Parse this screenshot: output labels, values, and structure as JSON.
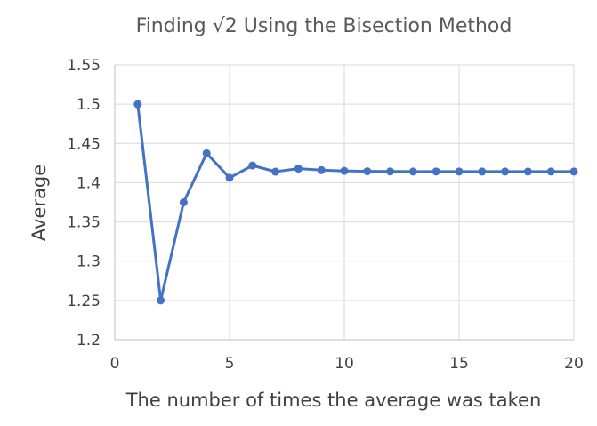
{
  "chart_data": {
    "type": "line",
    "title": "Finding √2 Using the Bisection Method",
    "xlabel": "The number of times the average was taken",
    "ylabel": "Average",
    "xlim": [
      0,
      20
    ],
    "ylim": [
      1.2,
      1.55
    ],
    "x_ticks": [
      "0",
      "5",
      "10",
      "15",
      "20"
    ],
    "y_ticks": [
      "1.2",
      "1.25",
      "1.3",
      "1.35",
      "1.4",
      "1.45",
      "1.5",
      "1.55"
    ],
    "x_tick_values": [
      0,
      5,
      10,
      15,
      20
    ],
    "y_tick_values": [
      1.2,
      1.25,
      1.3,
      1.35,
      1.4,
      1.45,
      1.5,
      1.55
    ],
    "grid": true,
    "series": [
      {
        "name": "Average",
        "color": "#4472c4",
        "x": [
          1,
          2,
          3,
          4,
          5,
          6,
          7,
          8,
          9,
          10,
          11,
          12,
          13,
          14,
          15,
          16,
          17,
          18,
          19,
          20
        ],
        "values": [
          1.5,
          1.25,
          1.375,
          1.4375,
          1.40625,
          1.421875,
          1.4140625,
          1.41796875,
          1.416015625,
          1.4150390625,
          1.41455078125,
          1.414306640625,
          1.4141845703125,
          1.41424560546875,
          1.414215087890625,
          1.4141998291015625,
          1.4142074584960938,
          1.4142112731933594,
          1.4142131805419922,
          1.4142141342163086
        ]
      }
    ]
  }
}
